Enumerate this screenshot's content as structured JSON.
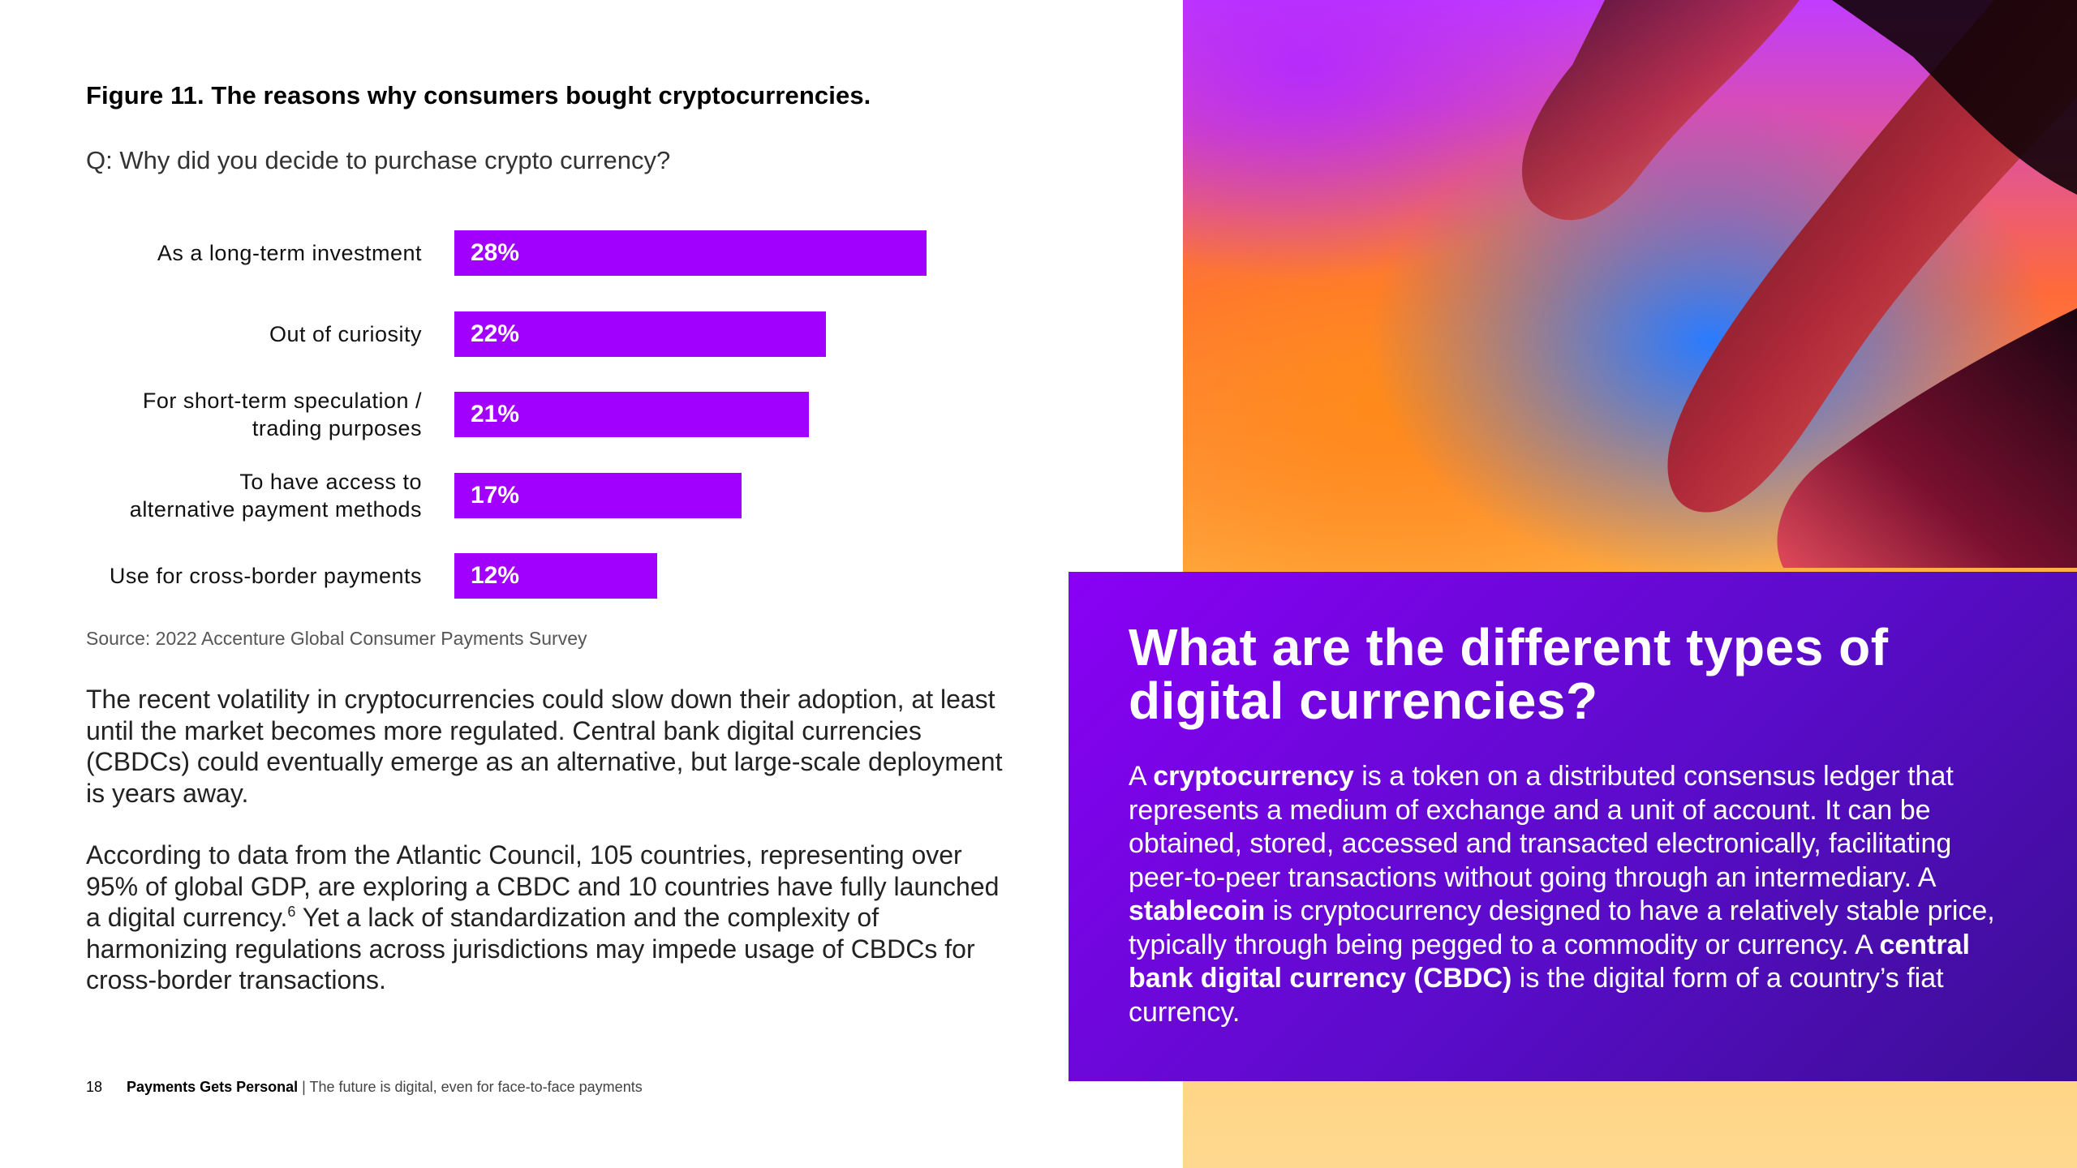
{
  "figure": {
    "title": "Figure 11. The reasons why consumers bought cryptocurrencies.",
    "question": "Q: Why did you decide to purchase crypto currency?"
  },
  "chart_data": {
    "type": "bar",
    "orientation": "horizontal",
    "categories": [
      "As a long-term investment",
      "Out of curiosity",
      "For short-term speculation / trading purposes",
      "To have access to alternative payment methods",
      "Use for cross-border payments"
    ],
    "category_lines": [
      [
        "As a long-term investment"
      ],
      [
        "Out of curiosity"
      ],
      [
        "For short-term speculation /",
        "trading purposes"
      ],
      [
        "To have access to",
        "alternative payment methods"
      ],
      [
        "Use for cross-border payments"
      ]
    ],
    "values": [
      28,
      22,
      21,
      17,
      12
    ],
    "value_labels": [
      "28%",
      "22%",
      "21%",
      "17%",
      "12%"
    ],
    "unit": "%",
    "color": "#a100ff",
    "grid": false,
    "legend": false
  },
  "source": "Source: 2022 Accenture Global Consumer Payments Survey",
  "paragraph1": "The recent volatility in cryptocurrencies could slow down their adoption, at least until the market becomes more regulated. Central bank digital currencies (CBDCs) could eventually emerge as an alternative, but large-scale deployment is years away.",
  "paragraph2": {
    "before": "According to data from the Atlantic Council, 105 countries, representing over 95% of global GDP, are exploring a CBDC and 10 countries have fully launched a digital currency.",
    "footnote": "6",
    "after": " Yet a lack of standardization and the complexity of harmonizing regulations across jurisdictions may impede usage of CBDCs for cross-border transactions."
  },
  "footer": {
    "page_number": "18",
    "publication": "Payments Gets Personal",
    "separator": " | ",
    "subtitle": "The future is digital, even for face-to-face payments"
  },
  "info_box": {
    "title": "What are the different types of digital currencies?",
    "seg1": "A ",
    "term1": "cryptocurrency",
    "seg2": " is a token on a distributed consensus ledger that represents a medium of exchange and a unit of account. It can be obtained, stored, accessed and transacted electronically, facilitating peer-to-peer transactions without going through an intermediary. A ",
    "term2": "stablecoin",
    "seg3": " is cryptocurrency designed to have a relatively stable price, typically through being pegged to a commodity or currency. A ",
    "term3": "central bank digital currency (CBDC)",
    "seg4": " is the digital form of a country’s fiat currency."
  },
  "colors": {
    "accent": "#a100ff",
    "box_start": "#8a00f5",
    "box_end": "#3a0e93"
  }
}
